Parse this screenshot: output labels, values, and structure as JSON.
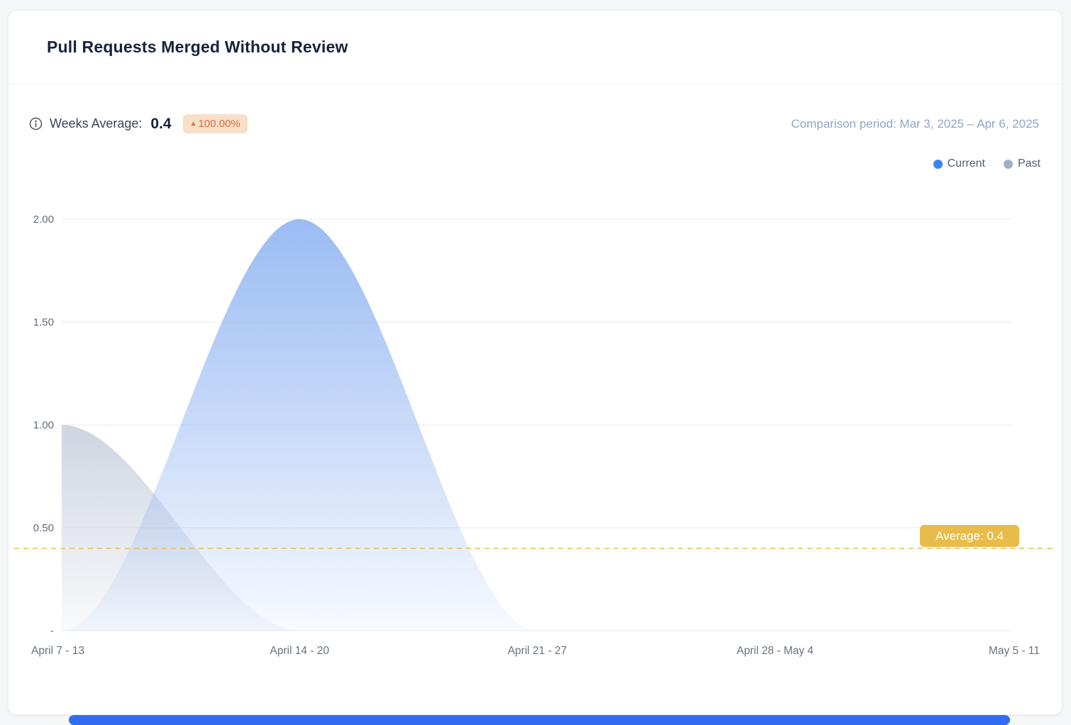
{
  "card": {
    "title": "Pull Requests Merged Without Review"
  },
  "stats": {
    "label": "Weeks Average:",
    "value": "0.4",
    "delta_arrow": "▲",
    "delta": "100.00%",
    "delta_direction": "up",
    "delta_color": "#df6a3e",
    "delta_bg": "#f8dfc8",
    "comparison": "Comparison period: Mar 3, 2025 – Apr 6, 2025"
  },
  "legend": [
    {
      "label": "Current",
      "color": "#3b82f6"
    },
    {
      "label": "Past",
      "color": "#9fb0cc"
    }
  ],
  "bottom_bar_color": "#2f6cf1",
  "chart_data": {
    "type": "area",
    "title": "Pull Requests Merged Without Review",
    "categories": [
      "April 7 - 13",
      "April 14 - 20",
      "April 21 - 27",
      "April 28 - May 4",
      "May 5 - 11"
    ],
    "series": [
      {
        "name": "Current",
        "values": [
          0,
          2,
          0,
          0,
          0
        ],
        "color": "#8fb4f2"
      },
      {
        "name": "Past",
        "values": [
          1,
          0,
          0,
          0,
          0
        ],
        "color": "#a7b2c8"
      }
    ],
    "xlabel": "",
    "ylabel": "",
    "ylim": [
      0,
      2
    ],
    "yticks": [
      "2.00",
      "1.50",
      "1.00",
      "0.50",
      "-"
    ],
    "ytick_values": [
      2,
      1.5,
      1,
      0.5,
      0
    ],
    "grid": true,
    "legend_position": "top-right",
    "average": {
      "value": 0.4,
      "label": "Average: 0.4",
      "color": "#e9bb4a"
    }
  }
}
